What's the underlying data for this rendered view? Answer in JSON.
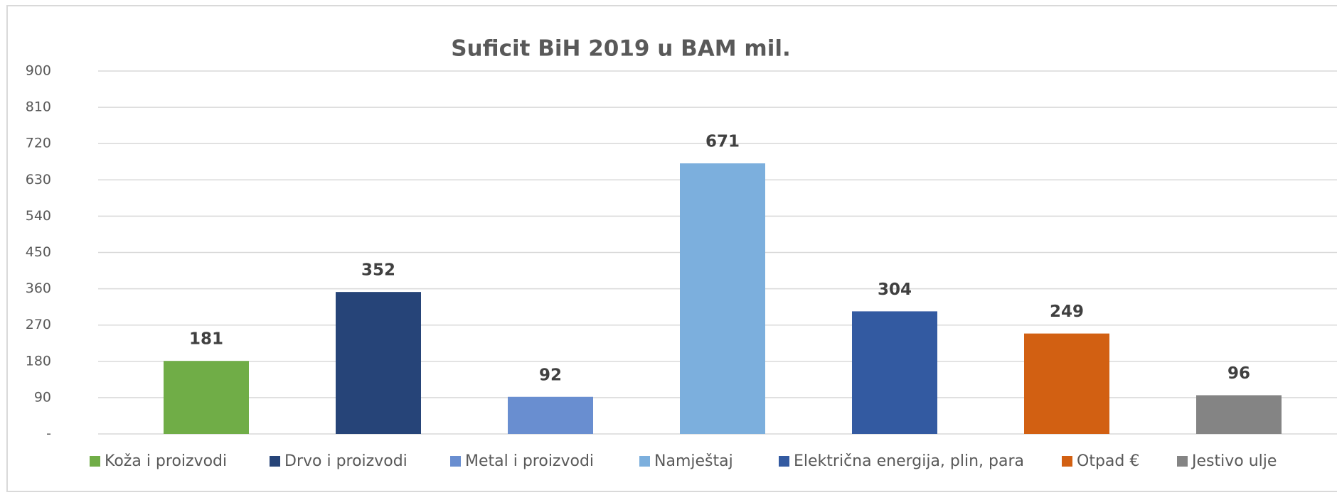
{
  "chart_data": {
    "type": "bar",
    "title": "Suficit BiH 2019 u BAM mil.",
    "categories": [
      "Koža i proizvodi",
      "Drvo i proizvodi",
      "Metal i proizvodi",
      "Namještaj",
      "Električna energija, plin, para",
      "Otpad €",
      "Jestivo ulje"
    ],
    "values": [
      181,
      352,
      92,
      671,
      304,
      249,
      96
    ],
    "colors": [
      "#70ad47",
      "#264478",
      "#698ed0",
      "#7cafdd",
      "#335aa1",
      "#d26012",
      "#848484"
    ],
    "ylim": [
      0,
      900
    ],
    "yticks": [
      {
        "value": 0,
        "label": "-"
      },
      90,
      180,
      270,
      360,
      450,
      540,
      630,
      720,
      810,
      900
    ],
    "grid": true,
    "legend": "bottom"
  }
}
